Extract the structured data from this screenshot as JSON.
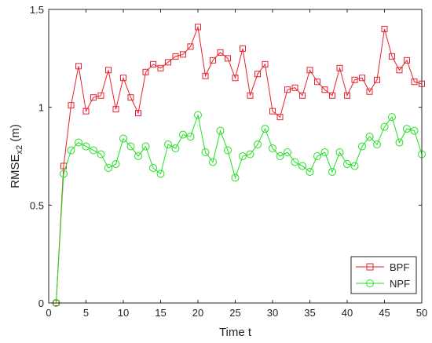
{
  "chart_data": {
    "type": "line",
    "xlabel": "Time t",
    "ylabel_main": "RMSE",
    "ylabel_sub": "x2",
    "ylabel_unit": " (m)",
    "xlim": [
      0,
      50
    ],
    "ylim": [
      0,
      1.5
    ],
    "xticks": [
      0,
      5,
      10,
      15,
      20,
      25,
      30,
      35,
      40,
      45,
      50
    ],
    "xtick_labels": [
      "0",
      "5",
      "10",
      "15",
      "20",
      "25",
      "30",
      "35",
      "40",
      "45",
      "50"
    ],
    "yticks": [
      0,
      0.5,
      1,
      1.5
    ],
    "ytick_labels": [
      "0",
      "0.5",
      "1",
      "1.5"
    ],
    "grid": false,
    "legend_position": "bottom-right",
    "x": [
      1,
      2,
      3,
      4,
      5,
      6,
      7,
      8,
      9,
      10,
      11,
      12,
      13,
      14,
      15,
      16,
      17,
      18,
      19,
      20,
      21,
      22,
      23,
      24,
      25,
      26,
      27,
      28,
      29,
      30,
      31,
      32,
      33,
      34,
      35,
      36,
      37,
      38,
      39,
      40,
      41,
      42,
      43,
      44,
      45,
      46,
      47,
      48,
      49,
      50
    ],
    "series": [
      {
        "name": "BPF",
        "color": "#e8202a",
        "marker": "square",
        "values": [
          0,
          0.7,
          1.01,
          1.21,
          0.98,
          1.05,
          1.06,
          1.19,
          0.99,
          1.15,
          1.05,
          0.97,
          1.18,
          1.22,
          1.2,
          1.23,
          1.26,
          1.27,
          1.31,
          1.41,
          1.16,
          1.24,
          1.28,
          1.25,
          1.15,
          1.3,
          1.06,
          1.17,
          1.22,
          0.98,
          0.95,
          1.09,
          1.1,
          1.06,
          1.19,
          1.13,
          1.09,
          1.06,
          1.2,
          1.06,
          1.14,
          1.15,
          1.08,
          1.14,
          1.4,
          1.26,
          1.19,
          1.24,
          1.13,
          1.12
        ]
      },
      {
        "name": "NPF",
        "color": "#22e022",
        "marker": "circle",
        "values": [
          0,
          0.66,
          0.78,
          0.82,
          0.8,
          0.78,
          0.76,
          0.69,
          0.71,
          0.84,
          0.8,
          0.75,
          0.8,
          0.69,
          0.66,
          0.81,
          0.79,
          0.86,
          0.85,
          0.96,
          0.77,
          0.72,
          0.88,
          0.78,
          0.64,
          0.75,
          0.76,
          0.81,
          0.89,
          0.79,
          0.75,
          0.77,
          0.72,
          0.7,
          0.67,
          0.75,
          0.77,
          0.67,
          0.77,
          0.71,
          0.7,
          0.8,
          0.85,
          0.81,
          0.9,
          0.95,
          0.82,
          0.89,
          0.88,
          0.76
        ]
      }
    ]
  }
}
